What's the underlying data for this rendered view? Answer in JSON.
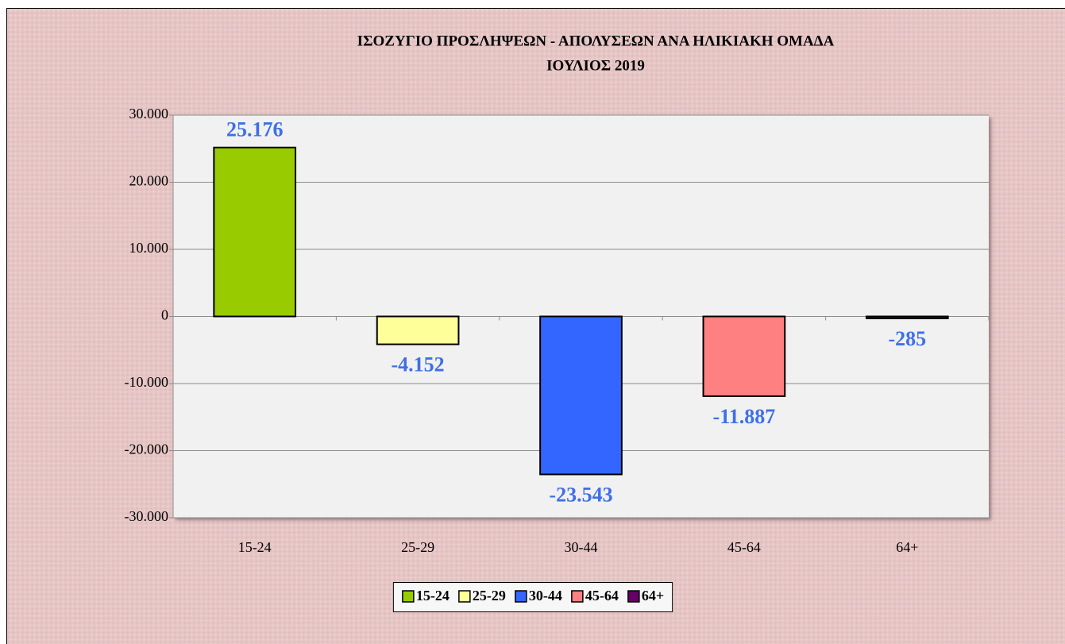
{
  "chart_data": {
    "type": "bar",
    "title": "ΙΣΟΖΥΓΙΟ  ΠΡΟΣΛΗΨΕΩΝ - ΑΠΟΛΥΣΕΩΝ ΑΝΑ ΗΛΙΚΙΑΚΗ ΟΜΑΔΑ",
    "subtitle": "ΙΟΥΛΙΟΣ  2019",
    "categories": [
      "15-24",
      "25-29",
      "30-44",
      "45-64",
      "64+"
    ],
    "values": [
      25176,
      -4152,
      -23543,
      -11887,
      -285
    ],
    "value_labels": [
      "25.176",
      "-4.152",
      "-23.543",
      "-11.887",
      "-285"
    ],
    "colors": [
      "#99cc00",
      "#ffff99",
      "#3366ff",
      "#ff8080",
      "#660066"
    ],
    "ylim": [
      -30000,
      30000
    ],
    "yticks": [
      {
        "value": -30000,
        "label": "-30.000"
      },
      {
        "value": -20000,
        "label": "-20.000"
      },
      {
        "value": -10000,
        "label": "-10.000"
      },
      0,
      {
        "value": 10000,
        "label": "10.000"
      },
      {
        "value": 20000,
        "label": "20.000"
      },
      {
        "value": 30000,
        "label": "30.000"
      }
    ],
    "grid": true,
    "legend": "bottom"
  }
}
